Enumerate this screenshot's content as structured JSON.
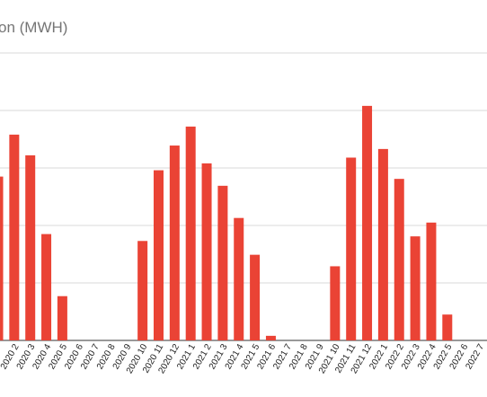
{
  "chart_data": {
    "type": "bar",
    "title": "on (MWH)",
    "xlabel": "",
    "ylabel": "",
    "ylim": [
      0,
      5
    ],
    "gridlines": [
      1,
      2,
      3,
      4,
      5
    ],
    "grid": true,
    "bar_color": "#ea4335",
    "categories": [
      "",
      "2020 2",
      "2020 3",
      "2020 4",
      "2020 5",
      "2020 6",
      "2020 7",
      "2020 8",
      "2020 9",
      "2020 10",
      "2020 11",
      "2020 12",
      "2021 1",
      "2021 2",
      "2021 3",
      "2021 4",
      "2021 5",
      "2021 6",
      "2021 7",
      "2021 8",
      "2021 9",
      "2021 10",
      "2021 11",
      "2021 12",
      "2022 1",
      "2022 2",
      "2022 3",
      "2022 4",
      "2022 5",
      "2022 6",
      "2022 7"
    ],
    "values": [
      2.85,
      3.58,
      3.22,
      1.85,
      0.77,
      0,
      0,
      0,
      0,
      1.73,
      2.96,
      3.39,
      3.72,
      3.08,
      2.69,
      2.13,
      1.49,
      0.08,
      0,
      0,
      0,
      1.29,
      3.18,
      4.08,
      3.33,
      2.81,
      1.81,
      2.05,
      0.45,
      0,
      0
    ]
  }
}
